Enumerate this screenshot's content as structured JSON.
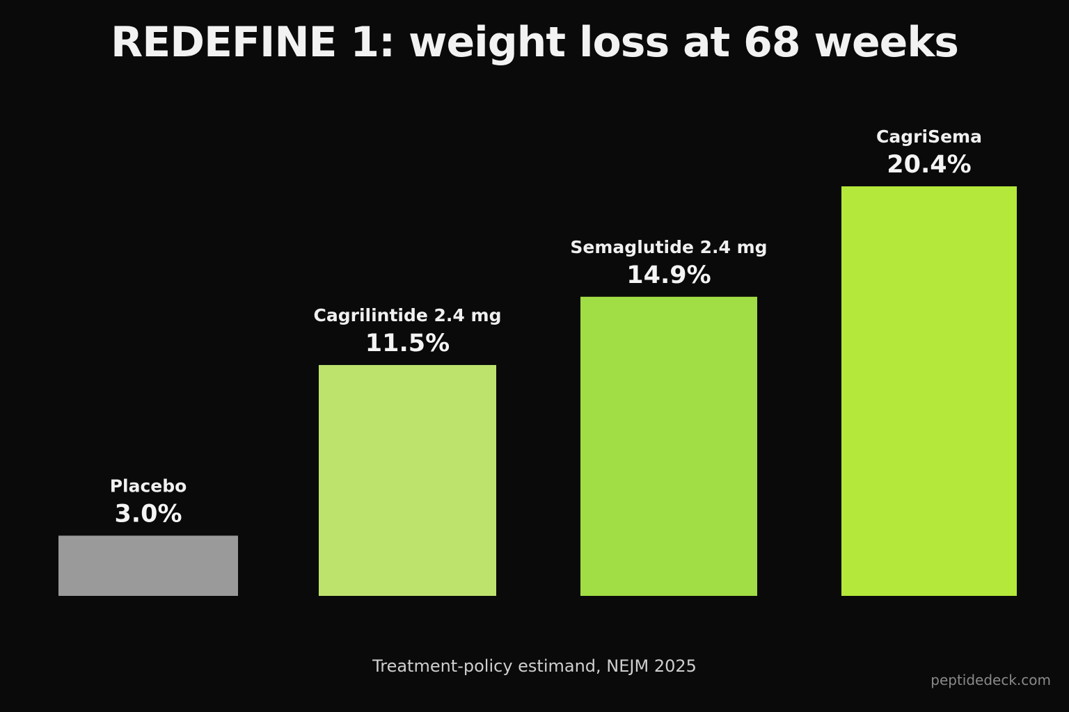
{
  "chart_data": {
    "type": "bar",
    "title": "REDEFINE 1: weight loss at 68 weeks",
    "categories": [
      "Placebo",
      "Cagrilintide 2.4 mg",
      "Semaglutide 2.4 mg",
      "CagriSema"
    ],
    "values": [
      3.0,
      11.5,
      14.9,
      20.4
    ],
    "value_labels": [
      "3.0%",
      "11.5%",
      "14.9%",
      "20.4%"
    ],
    "colors": [
      "#9a9a9a",
      "#bde36d",
      "#a1dd44",
      "#b4e83a"
    ],
    "ylim": [
      0,
      20.4
    ],
    "xlabel": "",
    "ylabel": "",
    "grid": false,
    "legend": "none"
  },
  "footnote": "Treatment-policy estimand, NEJM 2025",
  "watermark": "peptidedeck.com"
}
